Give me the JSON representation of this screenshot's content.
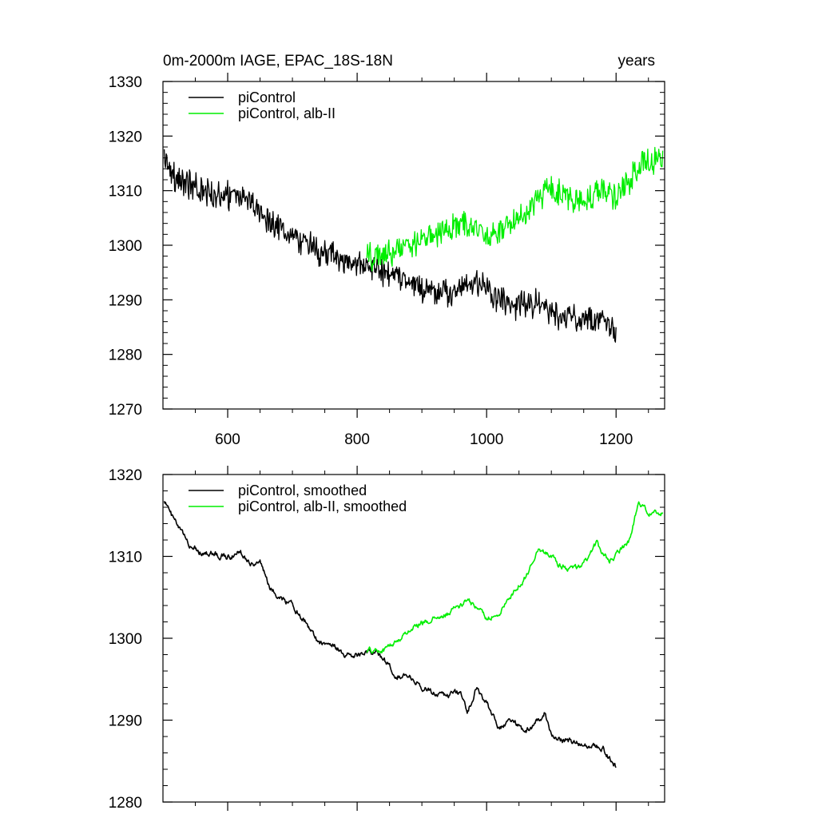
{
  "header": {
    "left_title": "0m-2000m IAGE, EPAC_18S-18N",
    "right_title": "years"
  },
  "colors": {
    "control": "#000000",
    "alb": "#00ee00"
  },
  "chart_data": [
    {
      "type": "line",
      "title": "0m-2000m IAGE, EPAC_18S-18N",
      "right_label": "years",
      "xlim": [
        500,
        1275
      ],
      "ylim": [
        1270,
        1330
      ],
      "x_ticks": [
        "600",
        "800",
        "1000",
        "1200"
      ],
      "y_ticks": [
        "1270",
        "1280",
        "1290",
        "1300",
        "1310",
        "1320",
        "1330"
      ],
      "grid": false,
      "legend_position": "top-left",
      "series": [
        {
          "name": "piControl",
          "color": "#000000",
          "noise": 3.4,
          "points": [
            [
              502,
              1317
            ],
            [
              520,
              1312
            ],
            [
              560,
              1310
            ],
            [
              600,
              1309
            ],
            [
              640,
              1308
            ],
            [
              660,
              1305
            ],
            [
              700,
              1302
            ],
            [
              740,
              1299
            ],
            [
              780,
              1297
            ],
            [
              820,
              1296
            ],
            [
              860,
              1294
            ],
            [
              900,
              1292
            ],
            [
              940,
              1291
            ],
            [
              980,
              1293
            ],
            [
              1000,
              1292
            ],
            [
              1020,
              1290
            ],
            [
              1040,
              1289
            ],
            [
              1060,
              1289
            ],
            [
              1080,
              1290
            ],
            [
              1100,
              1287
            ],
            [
              1140,
              1287
            ],
            [
              1180,
              1286
            ],
            [
              1192,
              1285
            ],
            [
              1200,
              1284
            ]
          ]
        },
        {
          "name": "piControl, alb-II",
          "color": "#00ee00",
          "noise": 3.4,
          "points": [
            [
              815,
              1298
            ],
            [
              840,
              1298
            ],
            [
              860,
              1299
            ],
            [
              880,
              1300
            ],
            [
              900,
              1301
            ],
            [
              940,
              1303
            ],
            [
              970,
              1304
            ],
            [
              1000,
              1302
            ],
            [
              1020,
              1302
            ],
            [
              1040,
              1304
            ],
            [
              1060,
              1306
            ],
            [
              1080,
              1309
            ],
            [
              1100,
              1310
            ],
            [
              1120,
              1309
            ],
            [
              1140,
              1308
            ],
            [
              1160,
              1309
            ],
            [
              1180,
              1310
            ],
            [
              1200,
              1309
            ],
            [
              1220,
              1312
            ],
            [
              1240,
              1315
            ],
            [
              1260,
              1315
            ],
            [
              1272,
              1316
            ]
          ]
        }
      ]
    },
    {
      "type": "line",
      "xlim": [
        500,
        1275
      ],
      "ylim": [
        1280,
        1320
      ],
      "x_ticks": [],
      "y_ticks": [
        "1280",
        "1290",
        "1300",
        "1310",
        "1320"
      ],
      "grid": false,
      "legend_position": "top-left",
      "series": [
        {
          "name": "piControl, smoothed",
          "color": "#000000",
          "noise": 0.9,
          "points": [
            [
              502,
              1317
            ],
            [
              510,
              1315.5
            ],
            [
              520,
              1314
            ],
            [
              540,
              1311.5
            ],
            [
              560,
              1310.5
            ],
            [
              600,
              1310
            ],
            [
              620,
              1310.5
            ],
            [
              640,
              1309
            ],
            [
              650,
              1309.5
            ],
            [
              665,
              1306
            ],
            [
              700,
              1304
            ],
            [
              720,
              1302
            ],
            [
              740,
              1299.5
            ],
            [
              760,
              1299.5
            ],
            [
              780,
              1298
            ],
            [
              800,
              1298
            ],
            [
              820,
              1298.5
            ],
            [
              840,
              1297.5
            ],
            [
              860,
              1295.5
            ],
            [
              880,
              1295.5
            ],
            [
              900,
              1294
            ],
            [
              940,
              1293
            ],
            [
              960,
              1293.5
            ],
            [
              970,
              1291
            ],
            [
              985,
              1294
            ],
            [
              1000,
              1292
            ],
            [
              1020,
              1289
            ],
            [
              1040,
              1290
            ],
            [
              1060,
              1288.5
            ],
            [
              1080,
              1290
            ],
            [
              1090,
              1291
            ],
            [
              1100,
              1288
            ],
            [
              1120,
              1287.5
            ],
            [
              1150,
              1287
            ],
            [
              1180,
              1286.5
            ],
            [
              1192,
              1285
            ],
            [
              1200,
              1284.3
            ]
          ]
        },
        {
          "name": "piControl, alb-II, smoothed",
          "color": "#00ee00",
          "noise": 0.9,
          "points": [
            [
              815,
              1298.5
            ],
            [
              840,
              1298.5
            ],
            [
              860,
              1299.5
            ],
            [
              880,
              1301
            ],
            [
              900,
              1302
            ],
            [
              930,
              1302.5
            ],
            [
              950,
              1303.5
            ],
            [
              970,
              1304.5
            ],
            [
              990,
              1303.5
            ],
            [
              1000,
              1302.5
            ],
            [
              1020,
              1303
            ],
            [
              1040,
              1305.5
            ],
            [
              1060,
              1307.5
            ],
            [
              1080,
              1311
            ],
            [
              1095,
              1310.5
            ],
            [
              1110,
              1309
            ],
            [
              1130,
              1308.5
            ],
            [
              1150,
              1309
            ],
            [
              1170,
              1311.5
            ],
            [
              1190,
              1309.5
            ],
            [
              1200,
              1310
            ],
            [
              1220,
              1312
            ],
            [
              1235,
              1316.5
            ],
            [
              1250,
              1315.5
            ],
            [
              1265,
              1315
            ],
            [
              1272,
              1315.5
            ]
          ]
        }
      ]
    }
  ]
}
